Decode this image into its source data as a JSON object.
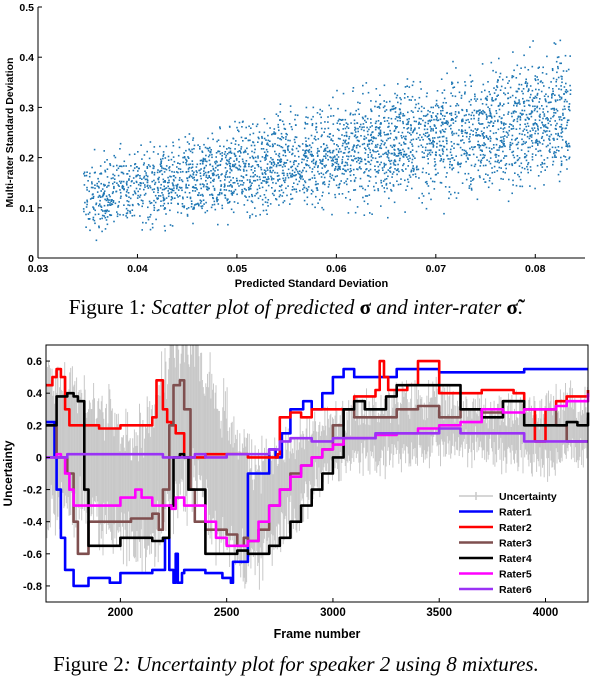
{
  "figure1": {
    "caption_prefix": "Figure 1",
    "caption_a": ": Scatter plot of predicted ",
    "caption_sym1": "σ",
    "caption_b": " and inter-rater ",
    "caption_sym2": "σ̃",
    "caption_c": "."
  },
  "figure2": {
    "caption_prefix": "Figure 2",
    "caption_text": ": Uncertainty plot for speaker 2 using 8 mixtures."
  },
  "chart_data": [
    {
      "type": "scatter",
      "xlabel": "Predicted Standard Deviation",
      "ylabel": "Multi-rater Standard Deviation",
      "xlim": [
        0.03,
        0.085
      ],
      "ylim": [
        0,
        0.5
      ],
      "xticks": [
        "0.03",
        "0.04",
        "0.05",
        "0.06",
        "0.07",
        "0.08"
      ],
      "yticks": [
        "0",
        "0.1",
        "0.2",
        "0.3",
        "0.4",
        "0.5"
      ],
      "color": "#1f77b4",
      "grid": false,
      "description": "dense point cloud",
      "cloud_extent": {
        "x": [
          0.034,
          0.085
        ],
        "y": [
          0.02,
          0.475
        ]
      }
    },
    {
      "type": "line",
      "xlabel": "Frame number",
      "ylabel": "Uncertainty",
      "xlim": [
        1650,
        4200
      ],
      "ylim": [
        -0.9,
        0.7
      ],
      "xticks": [
        "2000",
        "2500",
        "3000",
        "3500",
        "4000"
      ],
      "yticks": [
        "-0.8",
        "-0.6",
        "-0.4",
        "-0.2",
        "0",
        "0.2",
        "0.4",
        "0.6"
      ],
      "legend_position": "bottom-right",
      "series": [
        {
          "name": "Uncertainty",
          "color": "#c8c8c8",
          "style": "errorbar",
          "x": [
            1650,
            1750,
            1850,
            1950,
            2050,
            2150,
            2250,
            2350,
            2450,
            2550,
            2650,
            2750,
            2850,
            2950,
            3050,
            3200,
            3400,
            3600,
            3800,
            4000,
            4200
          ],
          "y": [
            0.05,
            0.1,
            0.0,
            -0.1,
            -0.2,
            -0.15,
            0.25,
            0.3,
            -0.05,
            -0.25,
            -0.35,
            -0.2,
            -0.1,
            0.05,
            0.1,
            0.15,
            0.2,
            0.2,
            0.15,
            0.15,
            0.2
          ],
          "err": [
            0.5,
            0.45,
            0.4,
            0.4,
            0.35,
            0.45,
            0.55,
            0.55,
            0.5,
            0.45,
            0.35,
            0.3,
            0.25,
            0.2,
            0.15,
            0.2,
            0.2,
            0.15,
            0.15,
            0.2,
            0.2
          ]
        },
        {
          "name": "Rater1",
          "color": "#0000ff",
          "x": [
            1650,
            1690,
            1700,
            1720,
            1740,
            1780,
            1820,
            1850,
            1950,
            2000,
            2100,
            2150,
            2200,
            2210,
            2230,
            2250,
            2260,
            2270,
            2290,
            2300,
            2400,
            2480,
            2520,
            2530,
            2600,
            2700,
            2730,
            2760,
            2800,
            2860,
            2900,
            2950,
            3000,
            3050,
            3100,
            3300,
            3500,
            3700,
            3900,
            4200
          ],
          "y": [
            0.22,
            0.0,
            -0.2,
            -0.5,
            -0.7,
            -0.8,
            -0.8,
            -0.75,
            -0.78,
            -0.72,
            -0.72,
            -0.7,
            -0.7,
            -0.5,
            -0.7,
            -0.78,
            -0.6,
            -0.78,
            -0.72,
            -0.7,
            -0.72,
            -0.75,
            -0.78,
            -0.65,
            -0.1,
            0.05,
            0.0,
            0.15,
            0.3,
            0.35,
            0.3,
            0.4,
            0.5,
            0.55,
            0.5,
            0.55,
            0.53,
            0.53,
            0.55,
            0.55
          ]
        },
        {
          "name": "Rater2",
          "color": "#ff0000",
          "x": [
            1650,
            1680,
            1700,
            1720,
            1740,
            1760,
            1800,
            1850,
            1900,
            2000,
            2100,
            2150,
            2170,
            2200,
            2220,
            2240,
            2260,
            2300,
            2380,
            2400,
            2500,
            2550,
            2600,
            2700,
            2740,
            2750,
            2800,
            2850,
            2900,
            3000,
            3100,
            3200,
            3220,
            3240,
            3260,
            3300,
            3350,
            3400,
            3500,
            3700,
            3850,
            3900,
            3950,
            4000,
            4050,
            4100,
            4200
          ],
          "y": [
            0.45,
            0.5,
            0.55,
            0.5,
            0.3,
            0.2,
            0.2,
            0.2,
            0.18,
            0.2,
            0.2,
            0.25,
            0.48,
            0.3,
            0.22,
            0.2,
            0.15,
            0.0,
            0.0,
            0.02,
            0.02,
            0.02,
            0.0,
            0.0,
            0.02,
            0.25,
            0.28,
            0.25,
            0.3,
            0.3,
            0.38,
            0.42,
            0.6,
            0.5,
            0.42,
            0.42,
            0.45,
            0.6,
            0.4,
            0.42,
            0.4,
            0.3,
            0.1,
            0.3,
            0.35,
            0.38,
            0.42
          ]
        },
        {
          "name": "Rater3",
          "color": "#7f4f4f",
          "x": [
            1650,
            1700,
            1750,
            1780,
            1800,
            1850,
            1950,
            2050,
            2150,
            2180,
            2200,
            2230,
            2250,
            2280,
            2300,
            2330,
            2350,
            2400,
            2450,
            2500,
            2550,
            2580,
            2600,
            2650,
            2700,
            2750,
            2800,
            2850,
            2900,
            2950,
            3000,
            3050,
            3100,
            3200,
            3300,
            3400,
            3500,
            3600,
            3700,
            3800,
            3900,
            4000,
            4050,
            4100,
            4200
          ],
          "y": [
            0.2,
            0.0,
            -0.1,
            -0.4,
            -0.6,
            -0.4,
            -0.4,
            -0.38,
            -0.35,
            -0.45,
            -0.2,
            0.2,
            0.45,
            0.48,
            0.3,
            -0.2,
            -0.4,
            -0.45,
            -0.45,
            -0.48,
            -0.55,
            -0.5,
            -0.52,
            -0.45,
            -0.3,
            -0.2,
            -0.1,
            -0.05,
            0.0,
            0.05,
            0.2,
            0.3,
            0.25,
            0.25,
            0.3,
            0.32,
            0.25,
            0.3,
            0.28,
            0.35,
            0.3,
            0.3,
            0.2,
            0.1,
            0.1
          ]
        },
        {
          "name": "Rater4",
          "color": "#000000",
          "x": [
            1650,
            1700,
            1750,
            1780,
            1800,
            1830,
            1850,
            1950,
            2000,
            2050,
            2150,
            2200,
            2230,
            2250,
            2280,
            2300,
            2320,
            2400,
            2500,
            2550,
            2600,
            2700,
            2750,
            2800,
            2850,
            2900,
            2950,
            3000,
            3050,
            3100,
            3150,
            3250,
            3300,
            3400,
            3500,
            3600,
            3700,
            3800,
            3900,
            4000,
            4100,
            4150,
            4200
          ],
          "y": [
            0.2,
            0.38,
            0.4,
            0.38,
            0.35,
            -0.2,
            -0.55,
            -0.55,
            -0.5,
            -0.5,
            -0.52,
            -0.5,
            -0.3,
            0.0,
            0.02,
            0.0,
            -0.2,
            -0.6,
            -0.6,
            -0.58,
            -0.6,
            -0.55,
            -0.5,
            -0.4,
            -0.3,
            -0.2,
            -0.1,
            0.0,
            0.3,
            0.35,
            0.3,
            0.38,
            0.45,
            0.45,
            0.45,
            0.3,
            0.25,
            0.35,
            0.2,
            0.2,
            0.22,
            0.2,
            0.28
          ]
        },
        {
          "name": "Rater5",
          "color": "#ff00ff",
          "x": [
            1650,
            1680,
            1700,
            1720,
            1740,
            1760,
            1780,
            1820,
            1850,
            1900,
            1950,
            2000,
            2050,
            2070,
            2100,
            2150,
            2200,
            2240,
            2260,
            2300,
            2350,
            2400,
            2450,
            2500,
            2550,
            2600,
            2650,
            2700,
            2750,
            2800,
            2850,
            2900,
            2950,
            3000,
            3050,
            3100,
            3200,
            3300,
            3400,
            3500,
            3600,
            3700,
            3800,
            3900,
            4000,
            4050,
            4100,
            4200
          ],
          "y": [
            0.0,
            0.0,
            0.02,
            0.0,
            -0.1,
            -0.2,
            -0.3,
            -0.3,
            -0.3,
            -0.3,
            -0.3,
            -0.25,
            -0.25,
            -0.2,
            -0.25,
            -0.3,
            -0.3,
            -0.32,
            -0.25,
            -0.3,
            -0.3,
            -0.4,
            -0.5,
            -0.55,
            -0.55,
            -0.52,
            -0.4,
            -0.3,
            -0.2,
            -0.12,
            -0.05,
            0.0,
            0.05,
            0.08,
            0.12,
            0.12,
            0.14,
            0.15,
            0.18,
            0.2,
            0.22,
            0.3,
            0.28,
            0.3,
            0.3,
            0.32,
            0.35,
            0.4
          ]
        },
        {
          "name": "Rater6",
          "color": "#9a32f5",
          "x": [
            1650,
            1750,
            1850,
            1950,
            2050,
            2150,
            2200,
            2300,
            2350,
            2400,
            2500,
            2600,
            2700,
            2750,
            2800,
            2900,
            3000,
            3100,
            3200,
            3300,
            3400,
            3500,
            3600,
            3700,
            3800,
            3900,
            4000,
            4100,
            4200
          ],
          "y": [
            0.0,
            0.02,
            0.02,
            0.02,
            0.02,
            0.02,
            0.0,
            0.0,
            0.02,
            0.0,
            0.02,
            0.02,
            0.05,
            0.1,
            0.12,
            0.1,
            0.12,
            0.12,
            0.15,
            0.15,
            0.15,
            0.18,
            0.15,
            0.15,
            0.15,
            0.1,
            0.1,
            0.1,
            0.1
          ]
        }
      ]
    }
  ]
}
